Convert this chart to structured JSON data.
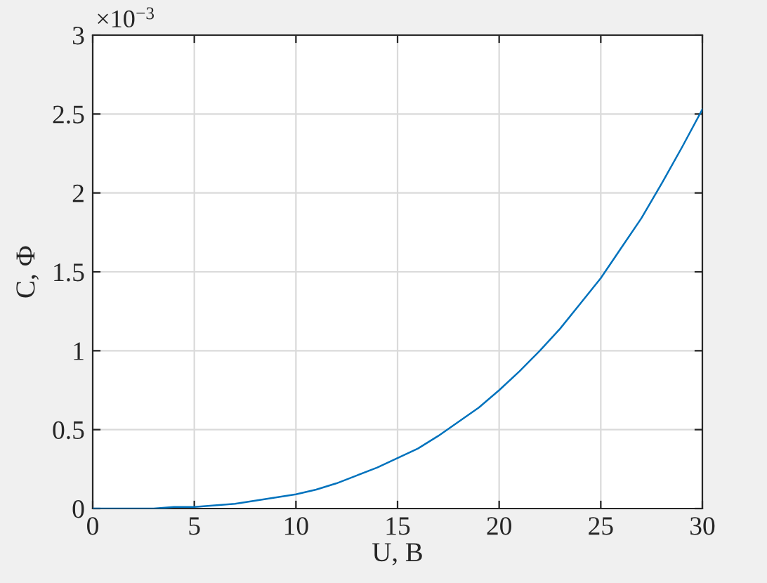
{
  "chart_data": {
    "type": "line",
    "xlabel": "U, В",
    "ylabel": "C, Ф",
    "annotations": [
      "×10$^{−3}$"
    ],
    "x": [
      0,
      1,
      2,
      3,
      4,
      5,
      6,
      7,
      8,
      9,
      10,
      11,
      12,
      13,
      14,
      15,
      16,
      17,
      18,
      19,
      20,
      21,
      22,
      23,
      24,
      25,
      26,
      27,
      28,
      29,
      30
    ],
    "series": [
      {
        "color": "#0072bd",
        "values": [
          0,
          0,
          0,
          0,
          0.01,
          0.01,
          0.02,
          0.03,
          0.05,
          0.07,
          0.09,
          0.12,
          0.16,
          0.21,
          0.26,
          0.32,
          0.38,
          0.46,
          0.55,
          0.64,
          0.75,
          0.87,
          1.0,
          1.14,
          1.3,
          1.46,
          1.65,
          1.84,
          2.06,
          2.29,
          2.53
        ]
      }
    ],
    "xlim": [
      0,
      30
    ],
    "xticks": [
      0,
      5,
      10,
      15,
      20,
      25,
      30
    ],
    "ylim": [
      0,
      3
    ],
    "yticks": [
      0,
      0.5,
      1,
      1.5,
      2,
      2.5,
      3
    ],
    "grid": true
  }
}
